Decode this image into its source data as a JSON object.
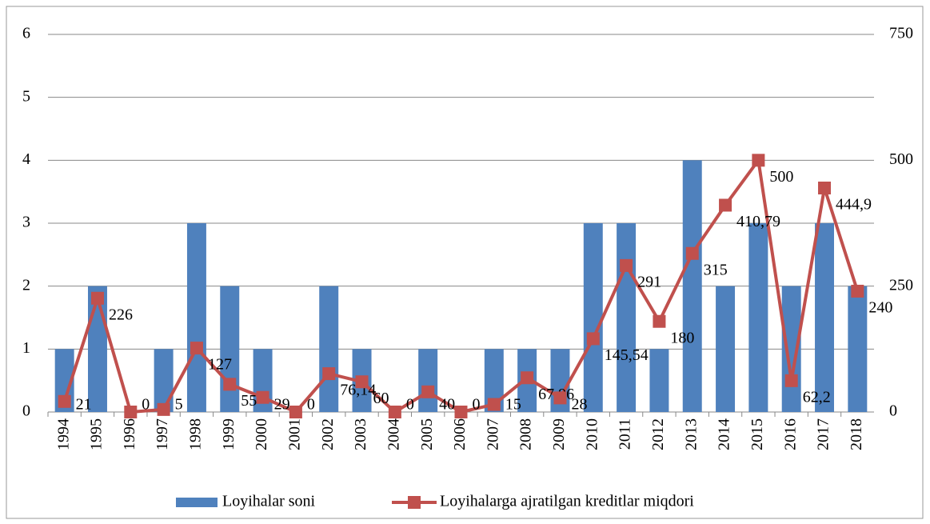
{
  "chart_data": {
    "type": "bar_line",
    "categories": [
      "1994",
      "1995",
      "1996",
      "1997",
      "1998",
      "1999",
      "2000",
      "2001",
      "2002",
      "2003",
      "2004",
      "2005",
      "2006",
      "2007",
      "2008",
      "2009",
      "2010",
      "2011",
      "2012",
      "2013",
      "2014",
      "2015",
      "2016",
      "2017",
      "2018"
    ],
    "series": [
      {
        "name": "Loyihalar soni",
        "type": "bar",
        "color": "#4f81bd",
        "axis": "y",
        "values": [
          1,
          2,
          0,
          1,
          3,
          2,
          1,
          0,
          2,
          1,
          0,
          1,
          0,
          1,
          1,
          1,
          3,
          3,
          1,
          4,
          2,
          3,
          2,
          3,
          2
        ]
      },
      {
        "name": "Loyihalarga ajratilgan kreditlar miqdori",
        "type": "line",
        "color": "#c0504d",
        "axis": "y2",
        "values": [
          21,
          226,
          0,
          5,
          127,
          55,
          29,
          0,
          76.14,
          60,
          0,
          40,
          0,
          15,
          67.96,
          28,
          145.54,
          291,
          180,
          315,
          410.79,
          500,
          62.2,
          444.9,
          240
        ],
        "value_labels": [
          "21",
          "226",
          "0",
          "5",
          "127",
          "55",
          "29",
          "0",
          "76,14",
          "60",
          "0",
          "40",
          "0",
          "15",
          "67,96",
          "28",
          "145,54",
          "291",
          "180",
          "315",
          "410,79",
          "500",
          "62,2",
          "444,9",
          "240"
        ]
      }
    ],
    "ylim": [
      0,
      6
    ],
    "yticks": [
      0,
      1,
      2,
      3,
      4,
      5,
      6
    ],
    "y2lim": [
      0,
      750
    ],
    "y2ticks": [
      0,
      250,
      500,
      750
    ],
    "grid": true,
    "legend": "bottom"
  }
}
